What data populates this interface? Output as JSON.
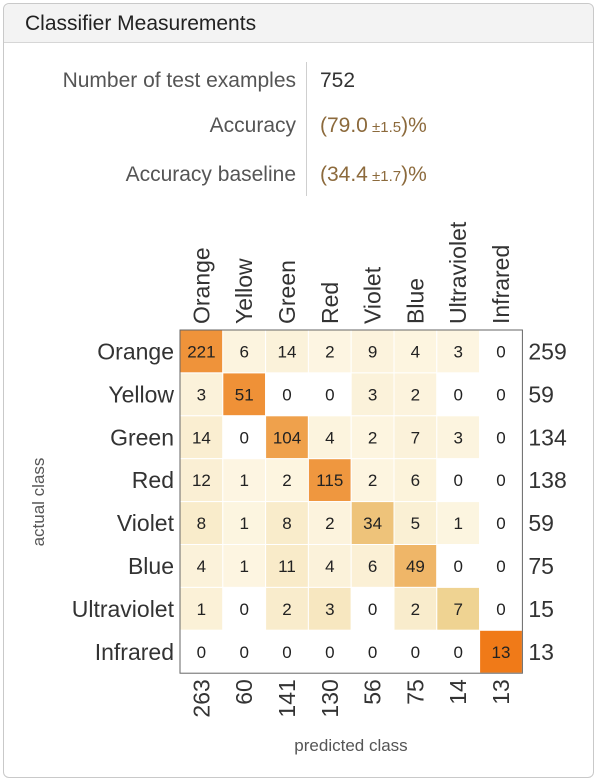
{
  "panel": {
    "title": "Classifier Measurements"
  },
  "stats": {
    "num_examples_label": "Number of test examples",
    "num_examples_value": "752",
    "accuracy_label": "Accuracy",
    "accuracy_open": "(79.0",
    "accuracy_err": " ±1.5",
    "accuracy_close": ")%",
    "baseline_label": "Accuracy baseline",
    "baseline_open": "(34.4",
    "baseline_err": " ±1.7",
    "baseline_close": ")%"
  },
  "chart_data": {
    "type": "heatmap",
    "title": "",
    "xlabel": "predicted class",
    "ylabel": "actual class",
    "classes": [
      "Orange",
      "Yellow",
      "Green",
      "Red",
      "Violet",
      "Blue",
      "Ultraviolet",
      "Infrared"
    ],
    "matrix": [
      [
        221,
        6,
        14,
        2,
        9,
        4,
        3,
        0
      ],
      [
        3,
        51,
        0,
        0,
        3,
        2,
        0,
        0
      ],
      [
        14,
        0,
        104,
        4,
        2,
        7,
        3,
        0
      ],
      [
        12,
        1,
        2,
        115,
        2,
        6,
        0,
        0
      ],
      [
        8,
        1,
        8,
        2,
        34,
        5,
        1,
        0
      ],
      [
        4,
        1,
        11,
        4,
        6,
        49,
        0,
        0
      ],
      [
        1,
        0,
        2,
        3,
        0,
        2,
        7,
        0
      ],
      [
        0,
        0,
        0,
        0,
        0,
        0,
        0,
        13
      ]
    ],
    "row_totals": [
      259,
      59,
      134,
      138,
      59,
      75,
      15,
      13
    ],
    "col_totals": [
      263,
      60,
      141,
      130,
      56,
      75,
      14,
      13
    ],
    "colors": {
      "low": "#fdf6e3",
      "mid": "#eed08c",
      "high": "#f07a18",
      "zero": "#ffffff",
      "grid": "#ffffff"
    }
  }
}
